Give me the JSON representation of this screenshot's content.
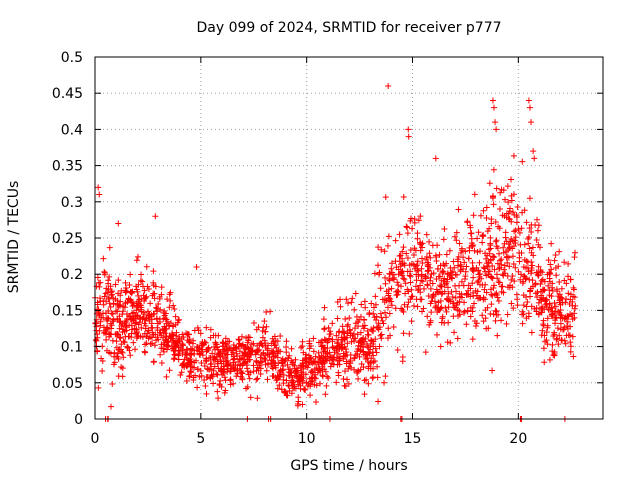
{
  "chart_data": {
    "type": "scatter",
    "title": "Day 099 of 2024, SRMTID for receiver p777",
    "xlabel": "GPS time / hours",
    "ylabel": "SRMTID / TECUs",
    "xlim": [
      0,
      24
    ],
    "ylim": [
      0,
      0.5
    ],
    "xticks": [
      0,
      5,
      10,
      15,
      20
    ],
    "xtick_labels": [
      "0",
      "5",
      "10",
      "15",
      "20"
    ],
    "yticks": [
      0,
      0.05,
      0.1,
      0.15,
      0.2,
      0.25,
      0.3,
      0.35,
      0.4,
      0.45,
      0.5
    ],
    "ytick_labels": [
      "0",
      "0.05",
      "0.1",
      "0.15",
      "0.2",
      "0.25",
      "0.3",
      "0.35",
      "0.4",
      "0.45",
      "0.5"
    ],
    "grid": true,
    "marker": "+",
    "color": "#ff0000",
    "trend": {
      "x": [
        0,
        1,
        2,
        3,
        4,
        5,
        6,
        7,
        8,
        9,
        9.5,
        10,
        11,
        12,
        13,
        13.5,
        14,
        14.5,
        15,
        16,
        17,
        18,
        19,
        20,
        21,
        22,
        22.7
      ],
      "mean": [
        0.14,
        0.13,
        0.15,
        0.135,
        0.1,
        0.085,
        0.075,
        0.08,
        0.095,
        0.07,
        0.055,
        0.07,
        0.095,
        0.11,
        0.1,
        0.15,
        0.2,
        0.2,
        0.21,
        0.18,
        0.185,
        0.2,
        0.225,
        0.23,
        0.17,
        0.14,
        0.15
      ],
      "spread": [
        0.05,
        0.045,
        0.04,
        0.04,
        0.03,
        0.03,
        0.025,
        0.025,
        0.03,
        0.025,
        0.02,
        0.025,
        0.03,
        0.035,
        0.04,
        0.07,
        0.06,
        0.055,
        0.055,
        0.045,
        0.05,
        0.06,
        0.07,
        0.075,
        0.05,
        0.045,
        0.05
      ]
    },
    "point_count": 2200,
    "x_data_range": [
      0,
      22.7
    ],
    "highlight_points": [
      {
        "x": 13.85,
        "y": 0.46
      },
      {
        "x": 14.8,
        "y": 0.4
      },
      {
        "x": 14.82,
        "y": 0.39
      },
      {
        "x": 16.1,
        "y": 0.36
      },
      {
        "x": 18.8,
        "y": 0.44
      },
      {
        "x": 18.85,
        "y": 0.43
      },
      {
        "x": 18.9,
        "y": 0.41
      },
      {
        "x": 18.95,
        "y": 0.4
      },
      {
        "x": 20.5,
        "y": 0.44
      },
      {
        "x": 20.55,
        "y": 0.43
      },
      {
        "x": 20.6,
        "y": 0.41
      },
      {
        "x": 20.7,
        "y": 0.37
      },
      {
        "x": 20.75,
        "y": 0.36
      },
      {
        "x": 0.15,
        "y": 0.32
      },
      {
        "x": 0.2,
        "y": 0.31
      },
      {
        "x": 2.85,
        "y": 0.28
      },
      {
        "x": 1.1,
        "y": 0.27
      },
      {
        "x": 4.8,
        "y": 0.21
      },
      {
        "x": 9.8,
        "y": 0.02
      },
      {
        "x": 9.6,
        "y": 0.03
      }
    ],
    "zero_points_x": [
      0.5,
      0.6,
      0.62,
      7.2,
      8.2,
      8.3,
      11.1,
      14.45,
      14.5,
      20.1,
      20.15,
      22.2
    ]
  }
}
